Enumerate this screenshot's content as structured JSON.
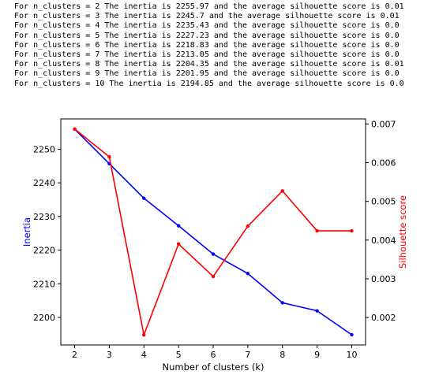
{
  "console_lines": [
    "For n_clusters = 2 The inertia is 2255.97 and the average silhouette score is 0.01",
    "For n_clusters = 3 The inertia is 2245.7 and the average silhouette score is 0.01",
    "For n_clusters = 4 The inertia is 2235.43 and the average silhouette score is 0.0",
    "For n_clusters = 5 The inertia is 2227.23 and the average silhouette score is 0.0",
    "For n_clusters = 6 The inertia is 2218.83 and the average silhouette score is 0.0",
    "For n_clusters = 7 The inertia is 2213.05 and the average silhouette score is 0.0",
    "For n_clusters = 8 The inertia is 2204.35 and the average silhouette score is 0.01",
    "For n_clusters = 9 The inertia is 2201.95 and the average silhouette score is 0.0",
    "For n_clusters = 10 The inertia is 2194.85 and the average silhouette score is 0.0"
  ],
  "chart_data": {
    "type": "line",
    "title": "",
    "xlabel": "Number of clusters (k)",
    "x": [
      2,
      3,
      4,
      5,
      6,
      7,
      8,
      9,
      10
    ],
    "xlim": [
      1.6,
      10.4
    ],
    "xticks": [
      2,
      3,
      4,
      5,
      6,
      7,
      8,
      9,
      10
    ],
    "grid": false,
    "legend": "none",
    "series": [
      {
        "name": "",
        "axis": "left",
        "color": "#0000ff",
        "values": [
          2255.97,
          2245.7,
          2235.43,
          2227.23,
          2218.83,
          2213.05,
          2204.35,
          2201.95,
          2194.85
        ]
      },
      {
        "name": "",
        "axis": "right",
        "color": "#ff0000",
        "values": [
          0.00687,
          0.00615,
          0.00155,
          0.0039,
          0.00306,
          0.00436,
          0.00527,
          0.00424,
          0.00424
        ]
      }
    ],
    "y_left": {
      "label": "Inertia",
      "color": "#0000ff",
      "lim": [
        2191.8,
        2259.0
      ],
      "ticks": [
        2200,
        2210,
        2220,
        2230,
        2240,
        2250
      ]
    },
    "y_right": {
      "label": "Silhouette score",
      "color": "#ff0000",
      "lim": [
        0.00129,
        0.00713
      ],
      "ticks": [
        "0.002",
        "0.003",
        "0.004",
        "0.005",
        "0.006",
        "0.007"
      ]
    }
  }
}
